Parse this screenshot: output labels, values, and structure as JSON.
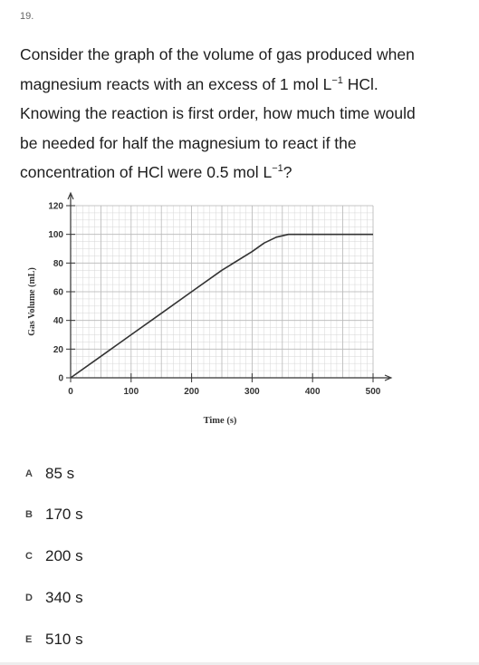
{
  "question": {
    "number": "19.",
    "text_line1": "Consider the graph of the volume of gas produced when",
    "text_line2a": "magnesium reacts with an excess of 1 mol L",
    "text_line2_sup": "−1",
    "text_line2b": " HCl.",
    "text_line3": "Knowing the reaction is first order, how much time would",
    "text_line4": "be needed for half the magnesium to react if the",
    "text_line5a": "concentration of HCl were 0.5 mol L",
    "text_line5_sup": "−1",
    "text_line5b": "?"
  },
  "chart_data": {
    "type": "line",
    "title": "",
    "xlabel": "Time (s)",
    "ylabel": "Gas Volume (mL)",
    "xlim": [
      0,
      500
    ],
    "ylim": [
      0,
      120
    ],
    "x_ticks": [
      "0",
      "100",
      "200",
      "300",
      "400",
      "500"
    ],
    "y_ticks": [
      "0",
      "20",
      "40",
      "60",
      "80",
      "100",
      "120"
    ],
    "grid": true,
    "series": [
      {
        "x": [
          0,
          50,
          100,
          150,
          200,
          250,
          300,
          320,
          340,
          360,
          380,
          400,
          450,
          500
        ],
        "y": [
          0,
          15,
          30,
          45,
          60,
          75,
          88,
          94,
          98,
          100,
          100,
          100,
          100,
          100
        ]
      }
    ],
    "colors": {
      "line": "#333333",
      "grid": "#b9b9b9",
      "axis": "#333333"
    }
  },
  "choices": [
    {
      "letter": "A",
      "text": "85 s"
    },
    {
      "letter": "B",
      "text": "170 s"
    },
    {
      "letter": "C",
      "text": "200 s"
    },
    {
      "letter": "D",
      "text": "340 s"
    },
    {
      "letter": "E",
      "text": "510 s"
    }
  ]
}
